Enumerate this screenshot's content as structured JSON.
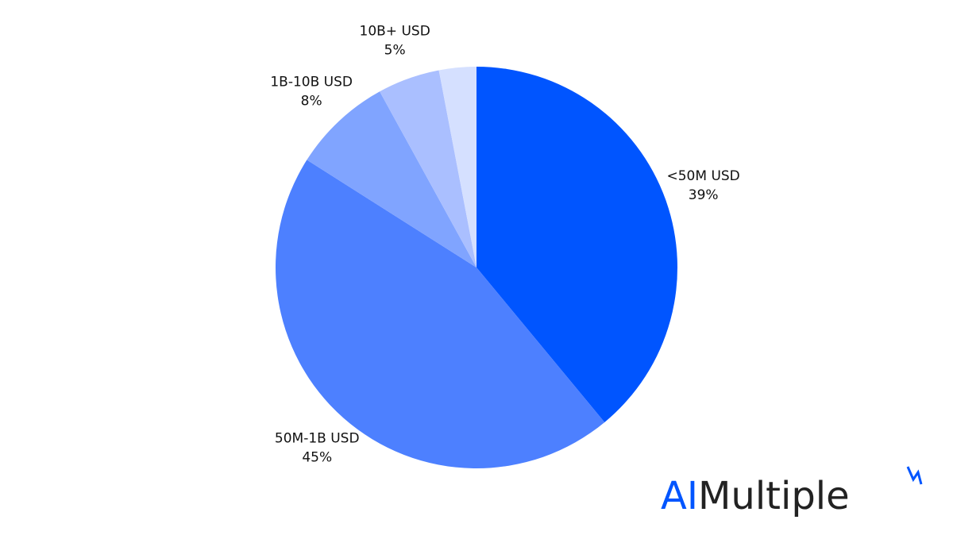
{
  "chart_data": {
    "type": "pie",
    "categories": [
      "<50M USD",
      "50M-1B USD",
      "1B-10B USD",
      "10B+ USD",
      null
    ],
    "values": [
      39,
      45,
      8,
      5,
      3
    ],
    "value_labels": [
      "39%",
      "45%",
      "8%",
      "5%",
      null
    ],
    "colors": [
      "#0055ff",
      "#4d80ff",
      "#80a4ff",
      "#aabfff",
      "#d5e0ff"
    ]
  },
  "brand": [
    "AI",
    "Multiple"
  ]
}
